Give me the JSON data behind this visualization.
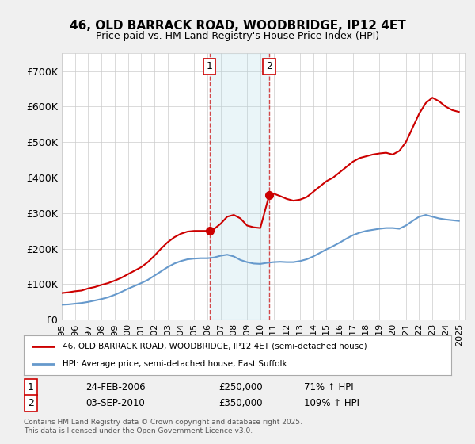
{
  "title": "46, OLD BARRACK ROAD, WOODBRIDGE, IP12 4ET",
  "subtitle": "Price paid vs. HM Land Registry's House Price Index (HPI)",
  "ylabel": "",
  "ylim": [
    0,
    750000
  ],
  "yticks": [
    0,
    100000,
    200000,
    300000,
    400000,
    500000,
    600000,
    700000
  ],
  "ytick_labels": [
    "£0",
    "£100K",
    "£200K",
    "£300K",
    "£400K",
    "£500K",
    "£600K",
    "£700K"
  ],
  "bg_color": "#f0f0f0",
  "plot_bg_color": "#ffffff",
  "red_color": "#cc0000",
  "blue_color": "#6699cc",
  "marker1_date_idx": 11.2,
  "marker2_date_idx": 15.7,
  "event1_label": "1",
  "event2_label": "2",
  "event1_date": "24-FEB-2006",
  "event1_price": "£250,000",
  "event1_hpi": "71% ↑ HPI",
  "event2_date": "03-SEP-2010",
  "event2_price": "£350,000",
  "event2_hpi": "109% ↑ HPI",
  "legend1": "46, OLD BARRACK ROAD, WOODBRIDGE, IP12 4ET (semi-detached house)",
  "legend2": "HPI: Average price, semi-detached house, East Suffolk",
  "footer": "Contains HM Land Registry data © Crown copyright and database right 2025.\nThis data is licensed under the Open Government Licence v3.0.",
  "red_x": [
    1995.0,
    1995.5,
    1996.0,
    1996.5,
    1997.0,
    1997.5,
    1998.0,
    1998.5,
    1999.0,
    1999.5,
    2000.0,
    2000.5,
    2001.0,
    2001.5,
    2002.0,
    2002.5,
    2003.0,
    2003.5,
    2004.0,
    2004.5,
    2005.0,
    2005.5,
    2006.0,
    2006.17,
    2006.5,
    2007.0,
    2007.5,
    2008.0,
    2008.5,
    2009.0,
    2009.5,
    2010.0,
    2010.67,
    2011.0,
    2011.5,
    2012.0,
    2012.5,
    2013.0,
    2013.5,
    2014.0,
    2014.5,
    2015.0,
    2015.5,
    2016.0,
    2016.5,
    2017.0,
    2017.5,
    2018.0,
    2018.5,
    2019.0,
    2019.5,
    2020.0,
    2020.5,
    2021.0,
    2021.5,
    2022.0,
    2022.5,
    2023.0,
    2023.5,
    2024.0,
    2024.5,
    2025.0
  ],
  "red_y": [
    75000,
    77000,
    80000,
    82000,
    88000,
    92000,
    98000,
    103000,
    110000,
    118000,
    128000,
    138000,
    148000,
    162000,
    180000,
    200000,
    218000,
    232000,
    242000,
    248000,
    250000,
    250000,
    250000,
    250000,
    255000,
    270000,
    290000,
    295000,
    285000,
    265000,
    260000,
    258000,
    350000,
    355000,
    348000,
    340000,
    335000,
    338000,
    345000,
    360000,
    375000,
    390000,
    400000,
    415000,
    430000,
    445000,
    455000,
    460000,
    465000,
    468000,
    470000,
    465000,
    475000,
    500000,
    540000,
    580000,
    610000,
    625000,
    615000,
    600000,
    590000,
    585000
  ],
  "blue_x": [
    1995.0,
    1995.5,
    1996.0,
    1996.5,
    1997.0,
    1997.5,
    1998.0,
    1998.5,
    1999.0,
    1999.5,
    2000.0,
    2000.5,
    2001.0,
    2001.5,
    2002.0,
    2002.5,
    2003.0,
    2003.5,
    2004.0,
    2004.5,
    2005.0,
    2005.5,
    2006.0,
    2006.5,
    2007.0,
    2007.5,
    2008.0,
    2008.5,
    2009.0,
    2009.5,
    2010.0,
    2010.5,
    2011.0,
    2011.5,
    2012.0,
    2012.5,
    2013.0,
    2013.5,
    2014.0,
    2014.5,
    2015.0,
    2015.5,
    2016.0,
    2016.5,
    2017.0,
    2017.5,
    2018.0,
    2018.5,
    2019.0,
    2019.5,
    2020.0,
    2020.5,
    2021.0,
    2021.5,
    2022.0,
    2022.5,
    2023.0,
    2023.5,
    2024.0,
    2024.5,
    2025.0
  ],
  "blue_y": [
    42000,
    43000,
    45000,
    47000,
    50000,
    54000,
    58000,
    63000,
    70000,
    78000,
    87000,
    95000,
    103000,
    112000,
    124000,
    136000,
    148000,
    158000,
    165000,
    170000,
    172000,
    173000,
    173000,
    175000,
    180000,
    183000,
    178000,
    168000,
    162000,
    158000,
    157000,
    160000,
    162000,
    163000,
    162000,
    162000,
    165000,
    170000,
    178000,
    188000,
    198000,
    207000,
    217000,
    228000,
    238000,
    245000,
    250000,
    253000,
    256000,
    258000,
    258000,
    256000,
    265000,
    278000,
    290000,
    295000,
    290000,
    285000,
    282000,
    280000,
    278000
  ],
  "vline1_x": 2006.17,
  "vline2_x": 2010.67,
  "marker1_y": 250000,
  "marker2_y": 350000,
  "xmin": 1995,
  "xmax": 2025.5,
  "xticks": [
    1995,
    1996,
    1997,
    1998,
    1999,
    2000,
    2001,
    2002,
    2003,
    2004,
    2005,
    2006,
    2007,
    2008,
    2009,
    2010,
    2011,
    2012,
    2013,
    2014,
    2015,
    2016,
    2017,
    2018,
    2019,
    2020,
    2021,
    2022,
    2023,
    2024,
    2025
  ]
}
